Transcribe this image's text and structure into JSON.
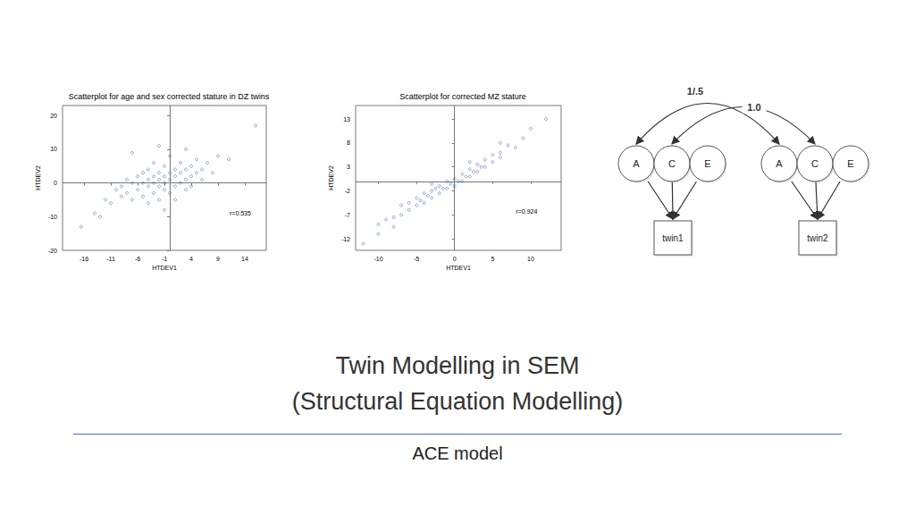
{
  "chart_data": [
    {
      "type": "scatter",
      "title": "Scatterplot for age and sex corrected stature in DZ twins",
      "xlabel": "HTDEV1",
      "ylabel": "HTDEV2",
      "annotation": "r=0.535",
      "color": "#3a6ea5",
      "marker": "circle",
      "grid": false,
      "xlim": [
        -20,
        18
      ],
      "xticks": [
        -16,
        -11,
        -6,
        -1,
        4,
        9,
        14
      ],
      "ylim": [
        -20,
        23
      ],
      "yticks": [
        -20,
        -10,
        0,
        10,
        20
      ],
      "x": [
        -16.5,
        -14,
        -12,
        -11,
        -10,
        -9,
        -9,
        -8,
        -8,
        -7,
        -7,
        -7,
        -6,
        -6,
        -5,
        -5,
        -5,
        -4,
        -4,
        -4,
        -4,
        -3,
        -3,
        -3,
        -3,
        -2,
        -2,
        -2,
        -2,
        -1,
        -1,
        -1,
        -1,
        -1,
        0,
        0,
        0,
        0,
        1,
        1,
        1,
        1,
        2,
        2,
        2,
        3,
        3,
        3,
        4,
        4,
        4,
        5,
        5,
        6,
        6,
        7,
        8,
        9,
        11,
        16,
        -13,
        -2,
        3
      ],
      "values": [
        -13,
        -9,
        -5,
        -6,
        -2,
        -4,
        -1,
        -3,
        1,
        -5,
        0,
        9,
        -2,
        2,
        -4,
        0,
        3,
        -6,
        -1,
        1,
        4,
        -3,
        0,
        2,
        6,
        -5,
        -1,
        1,
        3,
        -2,
        0,
        2,
        5,
        -8,
        -3,
        1,
        3,
        8,
        -1,
        2,
        4,
        -5,
        0,
        3,
        6,
        -2,
        1,
        4,
        2,
        5,
        -1,
        3,
        7,
        1,
        4,
        6,
        3,
        8,
        7,
        17,
        -10,
        11,
        10
      ]
    },
    {
      "type": "scatter",
      "title": "Scatterplot for corrected MZ stature",
      "xlabel": "HTDEV1",
      "ylabel": "HTDEV2",
      "annotation": "r=0.924",
      "color": "#3a6ea5",
      "marker": "circle",
      "grid": false,
      "xlim": [
        -13,
        14
      ],
      "xticks": [
        -10,
        -5,
        0,
        5,
        10
      ],
      "ylim": [
        -14.4,
        15.8
      ],
      "yticks": [
        -12,
        -7,
        -2,
        3,
        8,
        13
      ],
      "x": [
        -12,
        -10,
        -9,
        -8,
        -7,
        -7,
        -6,
        -6,
        -5,
        -5,
        -4.5,
        -4,
        -4,
        -3.5,
        -3,
        -3,
        -2.5,
        -2,
        -2,
        -1.5,
        -1,
        -1,
        -0.5,
        0,
        0,
        0.5,
        1,
        1,
        1.5,
        2,
        2,
        2.5,
        3,
        3,
        3.5,
        4,
        4,
        5,
        5,
        6,
        6,
        7,
        8,
        9,
        10,
        12,
        -8,
        -3,
        2,
        6,
        -10
      ],
      "values": [
        -13,
        -9,
        -8,
        -7.5,
        -5,
        -7,
        -6,
        -4.5,
        -5,
        -3.5,
        -4,
        -2.5,
        -4.5,
        -3,
        -2,
        -3.5,
        -1.5,
        -2.5,
        -1,
        -1.5,
        0,
        -1.5,
        -0.5,
        0.5,
        -1,
        0,
        1.5,
        0,
        1,
        2.5,
        1,
        2,
        3.5,
        2,
        3,
        4.5,
        3,
        5.5,
        4,
        6,
        5,
        7.5,
        7,
        9,
        11,
        13,
        -9.5,
        -0.5,
        4,
        8,
        -11
      ]
    }
  ],
  "diagram": {
    "twins": [
      {
        "label": "twin1",
        "factors": [
          "A",
          "C",
          "E"
        ]
      },
      {
        "label": "twin2",
        "factors": [
          "A",
          "C",
          "E"
        ]
      }
    ],
    "correlations": [
      {
        "factor": "A",
        "label": "1/.5"
      },
      {
        "factor": "C",
        "label": "1.0"
      }
    ]
  },
  "slide": {
    "title": "Twin Modelling in SEM",
    "subtitle": "(Structural Equation Modelling)",
    "section": "ACE model"
  }
}
